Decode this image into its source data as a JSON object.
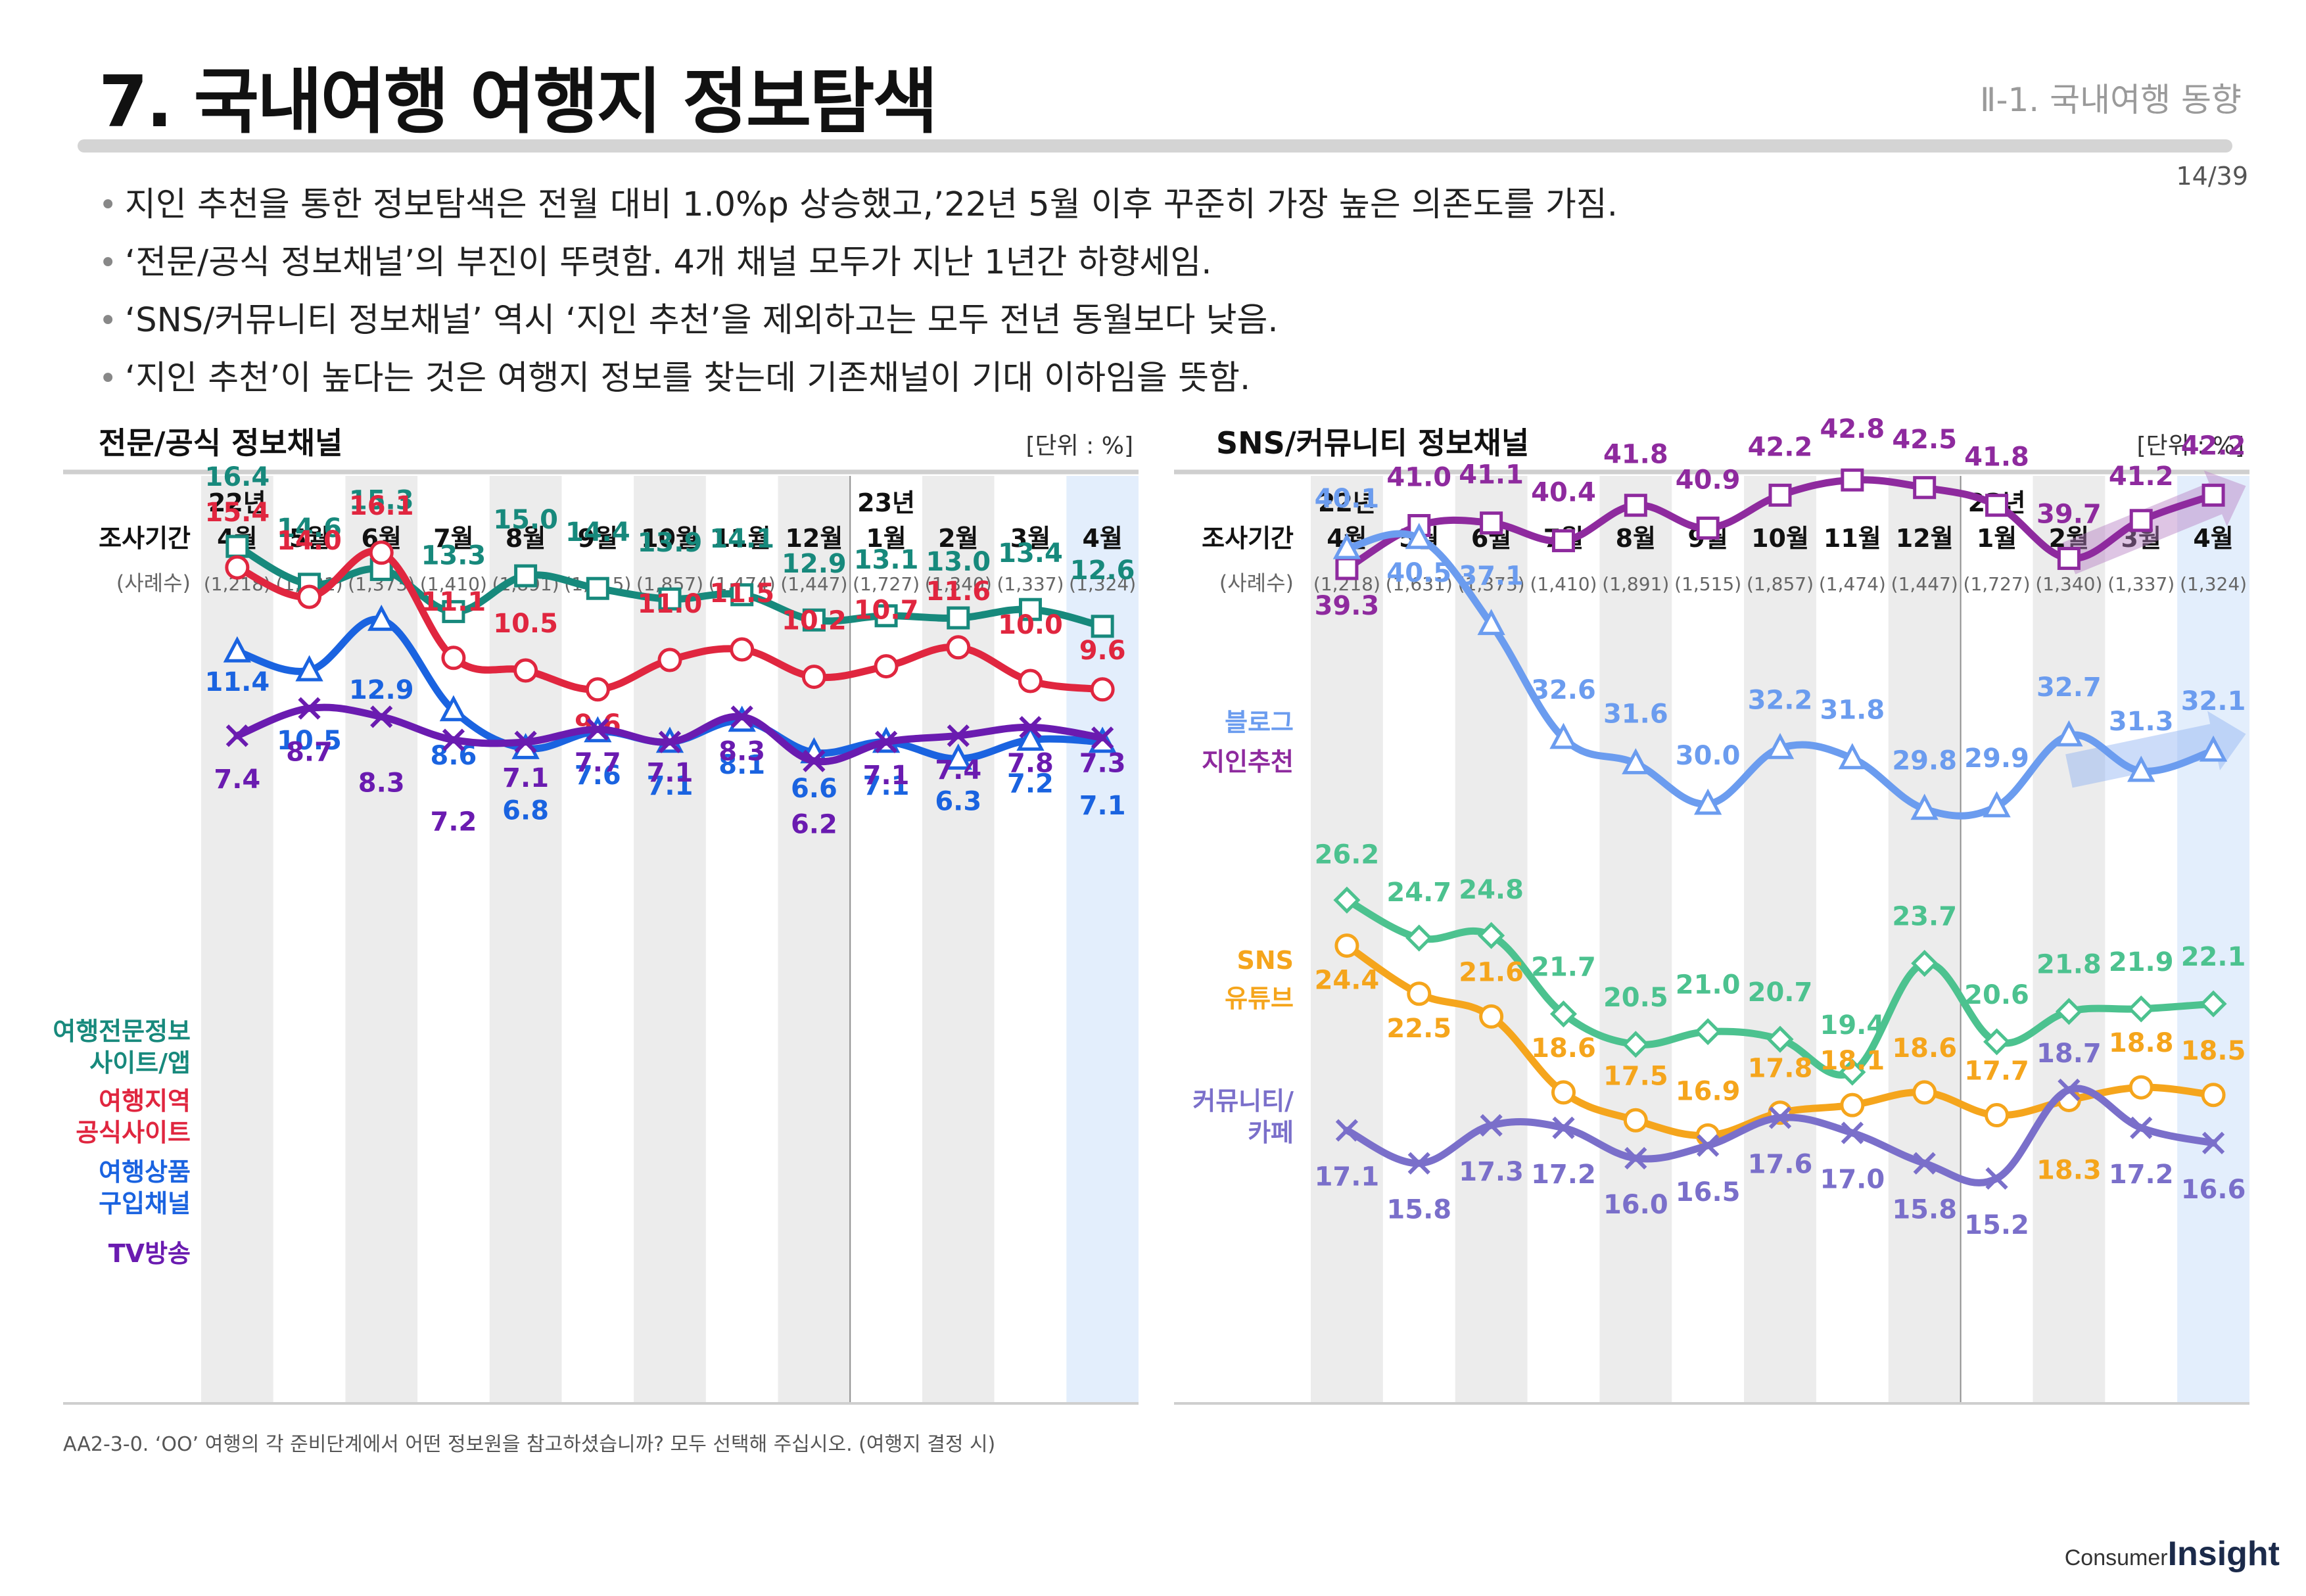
{
  "header": {
    "title": "7. 국내여행 여행지 정보탐색",
    "section_tag": "Ⅱ-1. 국내여행 동향",
    "page": "14/39"
  },
  "bullets": [
    "지인 추천을 통한 정보탐색은 전월 대비 1.0%p 상승했고,’22년 5월 이후 꾸준히 가장 높은 의존도를 가짐.",
    "‘전문/공식 정보채널’의 부진이 뚜렷함. 4개 채널 모두가 지난 1년간 하향세임.",
    "‘SNS/커뮤니티 정보채널’ 역시 ‘지인 추천’을 제외하고는 모두 전년 동월보다 낮음.",
    "‘지인 추천’이 높다는 것은 여행지 정보를 찾는데 기존채널이 기대 이하임을 뜻함."
  ],
  "footnote": "AA2-3-0. ‘OO’ 여행의 각 준비단계에서 어떤 정보원을 참고하셨습니까? 모두 선택해 주십시오. (여행지 결정 시)",
  "logo": {
    "line1": "Consumer",
    "line2": "Insight"
  },
  "colors": {
    "teal": "#17897c",
    "red": "#e0263f",
    "blue": "#1a63e0",
    "purple_dark": "#6a1bb0",
    "purple": "#8e2a9e",
    "light_blue": "#6b9cef",
    "green": "#4cc28f",
    "orange": "#f5a51c",
    "lavender": "#7a6fca"
  },
  "chart_data": [
    {
      "type": "line",
      "title": "전문/공식 정보채널",
      "unit": "[단위 : %]",
      "period_label": "조사기간",
      "n_label": "(사례수)",
      "year_labels": [
        {
          "index": 0,
          "label": "22년"
        },
        {
          "index": 9,
          "label": "23년"
        }
      ],
      "categories": [
        "4월",
        "5월",
        "6월",
        "7월",
        "8월",
        "9월",
        "10월",
        "11월",
        "12월",
        "1월",
        "2월",
        "3월",
        "4월"
      ],
      "sample_sizes": [
        "(1,218)",
        "(1,631)",
        "(1,373)",
        "(1,410)",
        "(1,891)",
        "(1,515)",
        "(1,857)",
        "(1,474)",
        "(1,447)",
        "(1,727)",
        "(1,340)",
        "(1,337)",
        "(1,324)"
      ],
      "ylim": [
        0,
        45
      ],
      "series": [
        {
          "name": "여행전문정보 사이트/앱",
          "color": "#17897c",
          "marker": "square",
          "values": [
            16.4,
            14.6,
            15.3,
            13.3,
            15.0,
            14.4,
            13.9,
            14.1,
            12.9,
            13.1,
            13.0,
            13.4,
            12.6
          ]
        },
        {
          "name": "여행지역 공식사이트",
          "color": "#e0263f",
          "marker": "circle",
          "values": [
            15.4,
            14.0,
            16.1,
            11.1,
            10.5,
            9.6,
            11.0,
            11.5,
            10.2,
            10.7,
            11.6,
            10.0,
            9.6
          ]
        },
        {
          "name": "여행상품 구입채널",
          "color": "#1a63e0",
          "marker": "triangle",
          "values": [
            11.4,
            10.5,
            12.9,
            8.6,
            6.8,
            7.6,
            7.1,
            8.1,
            6.6,
            7.1,
            6.3,
            7.2,
            7.1
          ]
        },
        {
          "name": "TV방송",
          "color": "#6a1bb0",
          "marker": "x",
          "values": [
            7.4,
            8.7,
            8.3,
            7.2,
            7.1,
            7.7,
            7.1,
            8.3,
            6.2,
            7.1,
            7.4,
            7.8,
            7.3
          ]
        }
      ]
    },
    {
      "type": "line",
      "title": "SNS/커뮤니티 정보채널",
      "unit": "[단위 : %]",
      "period_label": "조사기간",
      "n_label": "(사례수)",
      "year_labels": [
        {
          "index": 0,
          "label": "22년"
        },
        {
          "index": 9,
          "label": "23년"
        }
      ],
      "categories": [
        "4월",
        "5월",
        "6월",
        "7월",
        "8월",
        "9월",
        "10월",
        "11월",
        "12월",
        "1월",
        "2월",
        "3월",
        "4월"
      ],
      "sample_sizes": [
        "(1,218)",
        "(1,631)",
        "(1,373)",
        "(1,410)",
        "(1,891)",
        "(1,515)",
        "(1,857)",
        "(1,474)",
        "(1,447)",
        "(1,727)",
        "(1,340)",
        "(1,337)",
        "(1,324)"
      ],
      "ylim": [
        0,
        45
      ],
      "series": [
        {
          "name": "지인추천",
          "color": "#8e2a9e",
          "marker": "square",
          "values": [
            39.3,
            41.0,
            41.1,
            40.4,
            41.8,
            40.9,
            42.2,
            42.8,
            42.5,
            41.8,
            39.7,
            41.2,
            42.2
          ]
        },
        {
          "name": "블로그",
          "color": "#6b9cef",
          "marker": "triangle",
          "values": [
            40.1,
            40.5,
            37.1,
            32.6,
            31.6,
            30.0,
            32.2,
            31.8,
            29.8,
            29.9,
            32.7,
            31.3,
            32.1
          ]
        },
        {
          "name": "SNS",
          "color": "#4cc28f",
          "marker": "diamond",
          "values": [
            26.2,
            24.7,
            24.8,
            21.7,
            20.5,
            21.0,
            20.7,
            19.4,
            23.7,
            20.6,
            21.8,
            21.9,
            22.1
          ]
        },
        {
          "name": "유튜브",
          "color": "#f5a51c",
          "marker": "circle",
          "values": [
            24.4,
            22.5,
            21.6,
            18.6,
            17.5,
            16.9,
            17.8,
            18.1,
            18.6,
            17.7,
            18.3,
            18.8,
            18.5
          ]
        },
        {
          "name": "커뮤니티/ 카페",
          "color": "#7a6fca",
          "marker": "x",
          "values": [
            17.1,
            15.8,
            17.3,
            17.2,
            16.0,
            16.5,
            17.6,
            17.0,
            15.8,
            15.2,
            18.7,
            17.2,
            16.6
          ]
        }
      ]
    }
  ]
}
